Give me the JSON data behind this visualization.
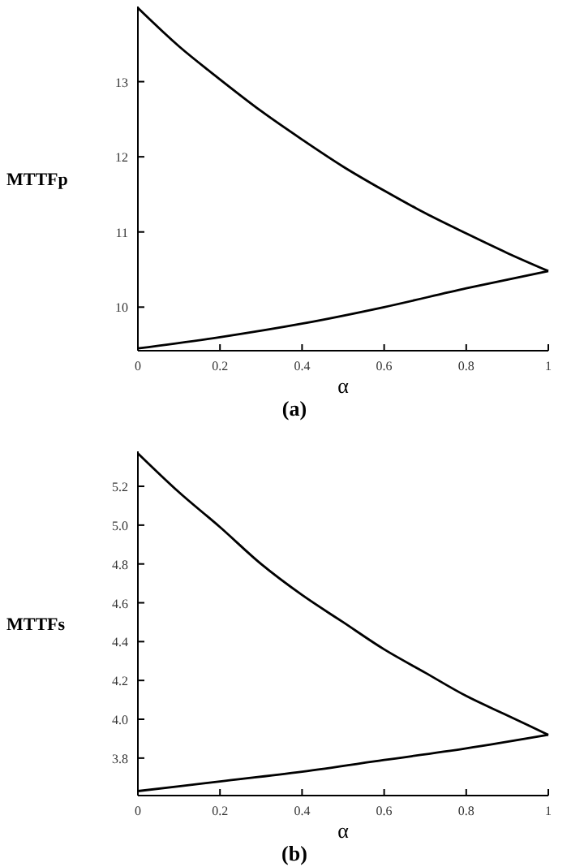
{
  "chart_data": [
    {
      "type": "line",
      "xlabel": "α",
      "ylabel": "MTTFp",
      "annotations": [
        "(a)"
      ],
      "xlim": [
        0,
        1
      ],
      "ylim": [
        9.42,
        14.0
      ],
      "xticks": [
        0,
        0.2,
        0.4,
        0.6,
        0.8,
        1
      ],
      "yticks": [
        10,
        11,
        12,
        13
      ],
      "series": [
        {
          "color": "#000000",
          "x": [
            0,
            0.1,
            0.2,
            0.3,
            0.4,
            0.5,
            0.6,
            0.7,
            0.8,
            0.9,
            1
          ],
          "values": [
            13.98,
            13.47,
            13.03,
            12.61,
            12.23,
            11.87,
            11.55,
            11.25,
            10.98,
            10.72,
            10.48
          ]
        },
        {
          "color": "#000000",
          "x": [
            0,
            0.2,
            0.4,
            0.6,
            0.8,
            1
          ],
          "values": [
            9.45,
            9.6,
            9.78,
            10.0,
            10.25,
            10.48
          ]
        }
      ]
    },
    {
      "type": "line",
      "xlabel": "α",
      "ylabel": "MTTFs",
      "annotations": [
        "(b)"
      ],
      "xlim": [
        0,
        1
      ],
      "ylim": [
        3.607,
        5.38
      ],
      "xticks": [
        0,
        0.2,
        0.4,
        0.6,
        0.8,
        1
      ],
      "yticks": [
        {
          "value": 3.8,
          "label": "3.8"
        },
        {
          "value": 4,
          "label": "4.0"
        },
        {
          "value": 4.2,
          "label": "4.2"
        },
        {
          "value": 4.4,
          "label": "4.4"
        },
        {
          "value": 4.6,
          "label": "4.6"
        },
        {
          "value": 4.8,
          "label": "4.8"
        },
        {
          "value": 5,
          "label": "5.0"
        },
        {
          "value": 5.2,
          "label": "5.2"
        }
      ],
      "series": [
        {
          "color": "#000000",
          "x": [
            0,
            0.1,
            0.2,
            0.3,
            0.4,
            0.5,
            0.6,
            0.7,
            0.8,
            0.9,
            1
          ],
          "values": [
            5.37,
            5.17,
            4.99,
            4.8,
            4.64,
            4.5,
            4.36,
            4.24,
            4.12,
            4.02,
            3.92
          ]
        },
        {
          "color": "#000000",
          "x": [
            0,
            0.2,
            0.4,
            0.6,
            0.8,
            1
          ],
          "values": [
            3.63,
            3.68,
            3.73,
            3.79,
            3.85,
            3.92
          ]
        }
      ]
    }
  ]
}
